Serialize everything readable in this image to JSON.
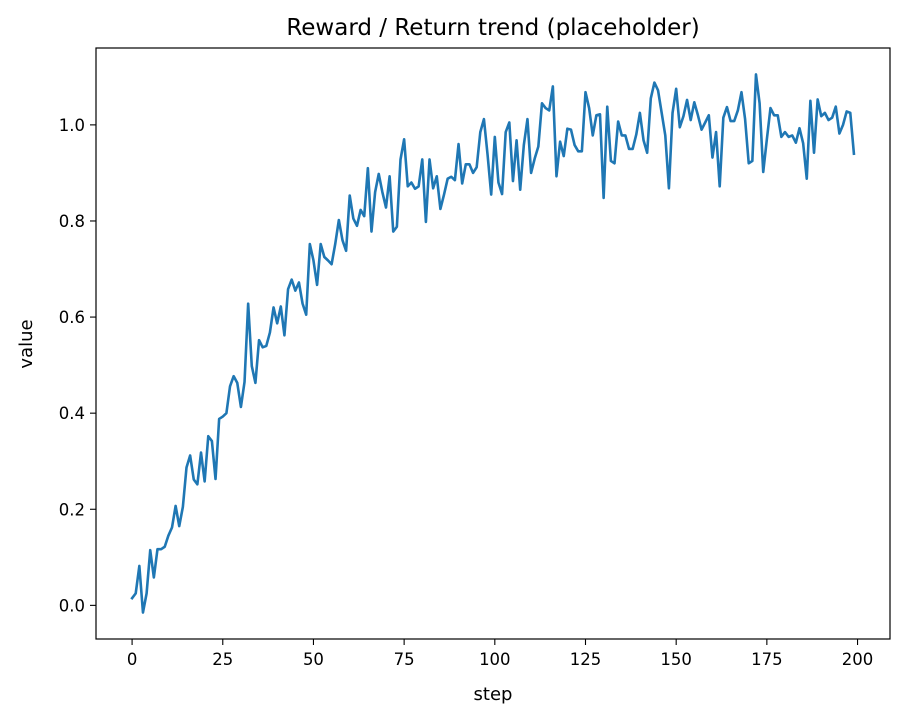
{
  "chart_data": {
    "type": "line",
    "title": "Reward / Return trend (placeholder)",
    "xlabel": "step",
    "ylabel": "value",
    "xlim": [
      -9.95,
      208.95
    ],
    "ylim": [
      -0.07,
      1.16
    ],
    "x_ticks": [
      0,
      25,
      50,
      75,
      100,
      125,
      150,
      175,
      200
    ],
    "y_ticks": [
      0.0,
      0.2,
      0.4,
      0.6,
      0.8,
      1.0
    ],
    "y_tick_labels": [
      "0.0",
      "0.2",
      "0.4",
      "0.6",
      "0.8",
      "1.0"
    ],
    "grid": false,
    "legend": "none",
    "color": "#1f77b4",
    "series": [
      {
        "x_start": 0,
        "x_step": 1,
        "values": [
          0.015,
          0.025,
          0.082,
          -0.015,
          0.025,
          0.115,
          0.058,
          0.117,
          0.117,
          0.122,
          0.145,
          0.162,
          0.207,
          0.165,
          0.205,
          0.287,
          0.312,
          0.262,
          0.252,
          0.318,
          0.258,
          0.352,
          0.342,
          0.263,
          0.388,
          0.393,
          0.4,
          0.456,
          0.477,
          0.463,
          0.413,
          0.465,
          0.628,
          0.498,
          0.463,
          0.552,
          0.537,
          0.54,
          0.568,
          0.62,
          0.587,
          0.622,
          0.562,
          0.658,
          0.678,
          0.655,
          0.672,
          0.628,
          0.605,
          0.752,
          0.718,
          0.667,
          0.752,
          0.725,
          0.718,
          0.71,
          0.752,
          0.802,
          0.76,
          0.738,
          0.853,
          0.805,
          0.79,
          0.823,
          0.81,
          0.91,
          0.778,
          0.86,
          0.898,
          0.86,
          0.828,
          0.893,
          0.778,
          0.788,
          0.928,
          0.97,
          0.872,
          0.88,
          0.867,
          0.872,
          0.928,
          0.798,
          0.928,
          0.868,
          0.893,
          0.825,
          0.855,
          0.888,
          0.892,
          0.885,
          0.96,
          0.878,
          0.918,
          0.918,
          0.9,
          0.912,
          0.985,
          1.012,
          0.938,
          0.855,
          0.975,
          0.88,
          0.856,
          0.985,
          1.005,
          0.883,
          0.968,
          0.865,
          0.958,
          1.012,
          0.9,
          0.93,
          0.955,
          1.045,
          1.035,
          1.03,
          1.08,
          0.893,
          0.965,
          0.935,
          0.992,
          0.99,
          0.958,
          0.945,
          0.945,
          1.068,
          1.035,
          0.978,
          1.02,
          1.022,
          0.848,
          1.038,
          0.925,
          0.92,
          1.007,
          0.978,
          0.978,
          0.95,
          0.95,
          0.98,
          1.025,
          0.968,
          0.942,
          1.055,
          1.088,
          1.072,
          1.025,
          0.978,
          0.868,
          1.025,
          1.075,
          0.995,
          1.018,
          1.052,
          1.01,
          1.047,
          1.02,
          0.99,
          1.005,
          1.02,
          0.932,
          0.985,
          0.872,
          1.015,
          1.037,
          1.008,
          1.008,
          1.03,
          1.068,
          1.012,
          0.92,
          0.925,
          1.105,
          1.045,
          0.902,
          0.97,
          1.035,
          1.02,
          1.02,
          0.975,
          0.985,
          0.975,
          0.978,
          0.963,
          0.993,
          0.962,
          0.888,
          1.05,
          0.942,
          1.053,
          1.018,
          1.025,
          1.01,
          1.015,
          1.038,
          0.982,
          1.0,
          1.028,
          1.025,
          0.94
        ]
      }
    ]
  }
}
